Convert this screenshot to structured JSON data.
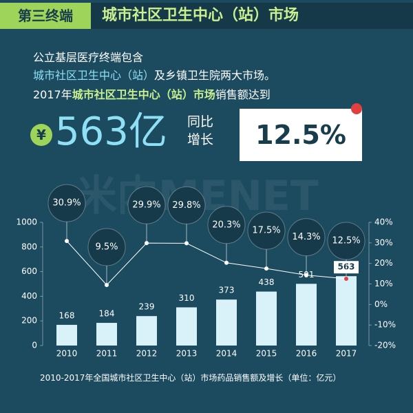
{
  "header": {
    "tag": "第三终端",
    "title": "城市社区卫生中心（站）市场"
  },
  "intro": {
    "line1": "公立基层医疗终端包含",
    "line2_highlight": "城市社区卫生中心（站）",
    "line2_rest": "及乡镇卫生院两大市场。",
    "line3_year": "2017年",
    "line3_bold": "城市社区卫生中心（站）市场",
    "line3_rest": "销售额达到"
  },
  "highlight": {
    "currency": "¥",
    "amount": "563亿",
    "growth_label_1": "同比",
    "growth_label_2": "增长",
    "growth_value": "12.5%"
  },
  "watermark": "米内MENET",
  "chart_data": {
    "type": "bar",
    "categories": [
      "2010",
      "2011",
      "2012",
      "2013",
      "2014",
      "2015",
      "2016",
      "2017"
    ],
    "series": [
      {
        "type": "bar",
        "color": "#d9f2fa",
        "values": [
          168,
          184,
          239,
          310,
          373,
          438,
          501,
          563
        ]
      },
      {
        "type": "line",
        "axis": "y2",
        "color": "#ffffff",
        "values": [
          30.9,
          9.5,
          29.9,
          29.8,
          20.3,
          17.5,
          14.3,
          12.5
        ],
        "value_labels": [
          "30.9%",
          "9.5%",
          "29.9%",
          "29.8%",
          "20.3%",
          "17.5%",
          "14.3%",
          "12.5%"
        ]
      }
    ],
    "ylim": [
      0,
      1000
    ],
    "yticks": [
      0,
      200,
      400,
      600,
      800,
      1000
    ],
    "y2lim": [
      -20,
      40
    ],
    "y2ticks": [
      {
        "value": -20,
        "label": "-20%"
      },
      {
        "value": -10,
        "label": "-10%"
      },
      {
        "value": 0,
        "label": "0%"
      },
      {
        "value": 10,
        "label": "10%"
      },
      {
        "value": 20,
        "label": "20%"
      },
      {
        "value": 30,
        "label": "30%"
      },
      {
        "value": 40,
        "label": "40%"
      }
    ],
    "caption": "2010-2017年全国城市社区卫生中心（站）市场药品销售额及增长（单位：亿元）"
  }
}
